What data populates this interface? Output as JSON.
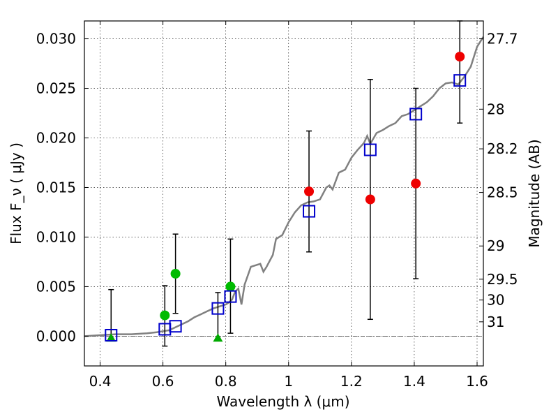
{
  "chart_data": {
    "type": "scatter",
    "xlabel": "Wavelength  λ (μm)",
    "ylabel": "Flux  F_ν  ( μJy )",
    "y2label": "Magnitude (AB)",
    "xlim": [
      0.35,
      1.62
    ],
    "ylim": [
      -0.003,
      0.0318
    ],
    "grid": true,
    "x_ticks": [
      0.4,
      0.6,
      0.8,
      1.0,
      1.2,
      1.4,
      1.6
    ],
    "x_tick_labels": [
      "0.4",
      "0.6",
      "0.8",
      "1",
      "1.2",
      "1.4",
      "1.6"
    ],
    "y_ticks": [
      0.0,
      0.005,
      0.01,
      0.015,
      0.02,
      0.025,
      0.03
    ],
    "y_tick_labels": [
      "0.000",
      "0.005",
      "0.010",
      "0.015",
      "0.020",
      "0.025",
      "0.030"
    ],
    "magnitude_ticks": [
      {
        "label": "27.7",
        "flux": 0.03
      },
      {
        "label": "28",
        "flux": 0.0229
      },
      {
        "label": "28.2",
        "flux": 0.0189
      },
      {
        "label": "28.5",
        "flux": 0.0145
      },
      {
        "label": "29",
        "flux": 0.0091
      },
      {
        "label": "29.5",
        "flux": 0.00575
      },
      {
        "label": "30",
        "flux": 0.00365
      },
      {
        "label": "31",
        "flux": 0.00145
      }
    ],
    "series": [
      {
        "style": "line",
        "color": "#808080",
        "points": [
          [
            0.35,
            0.0
          ],
          [
            0.4,
            0.0001
          ],
          [
            0.45,
            0.0002
          ],
          [
            0.5,
            0.0002
          ],
          [
            0.55,
            0.0003
          ],
          [
            0.58,
            0.0004
          ],
          [
            0.6,
            0.0005
          ],
          [
            0.62,
            0.0006
          ],
          [
            0.64,
            0.0009
          ],
          [
            0.66,
            0.0012
          ],
          [
            0.68,
            0.0015
          ],
          [
            0.7,
            0.0019
          ],
          [
            0.72,
            0.0022
          ],
          [
            0.74,
            0.0025
          ],
          [
            0.76,
            0.0028
          ],
          [
            0.78,
            0.003
          ],
          [
            0.8,
            0.0032
          ],
          [
            0.81,
            0.0034
          ],
          [
            0.82,
            0.0037
          ],
          [
            0.83,
            0.0045
          ],
          [
            0.84,
            0.0048
          ],
          [
            0.85,
            0.0032
          ],
          [
            0.86,
            0.0052
          ],
          [
            0.88,
            0.007
          ],
          [
            0.9,
            0.0072
          ],
          [
            0.91,
            0.0073
          ],
          [
            0.92,
            0.0065
          ],
          [
            0.93,
            0.007
          ],
          [
            0.95,
            0.0082
          ],
          [
            0.96,
            0.0098
          ],
          [
            0.98,
            0.0102
          ],
          [
            1.0,
            0.0115
          ],
          [
            1.02,
            0.0125
          ],
          [
            1.04,
            0.0132
          ],
          [
            1.06,
            0.0135
          ],
          [
            1.08,
            0.0136
          ],
          [
            1.1,
            0.0138
          ],
          [
            1.12,
            0.015
          ],
          [
            1.13,
            0.0152
          ],
          [
            1.14,
            0.0148
          ],
          [
            1.16,
            0.0165
          ],
          [
            1.18,
            0.0168
          ],
          [
            1.2,
            0.018
          ],
          [
            1.22,
            0.0188
          ],
          [
            1.24,
            0.0195
          ],
          [
            1.25,
            0.0202
          ],
          [
            1.26,
            0.0194
          ],
          [
            1.28,
            0.0205
          ],
          [
            1.3,
            0.0208
          ],
          [
            1.32,
            0.0212
          ],
          [
            1.34,
            0.0215
          ],
          [
            1.36,
            0.0222
          ],
          [
            1.38,
            0.0224
          ],
          [
            1.4,
            0.0228
          ],
          [
            1.42,
            0.0232
          ],
          [
            1.44,
            0.0236
          ],
          [
            1.46,
            0.0242
          ],
          [
            1.48,
            0.025
          ],
          [
            1.5,
            0.0255
          ],
          [
            1.52,
            0.0256
          ],
          [
            1.54,
            0.0254
          ],
          [
            1.56,
            0.0262
          ],
          [
            1.58,
            0.0272
          ],
          [
            1.6,
            0.0292
          ],
          [
            1.62,
            0.0302
          ]
        ]
      },
      {
        "style": "open-square",
        "color": "#0000cc",
        "points": [
          [
            0.435,
            0.0001
          ],
          [
            0.606,
            0.0007
          ],
          [
            0.64,
            0.001
          ],
          [
            0.775,
            0.0028
          ],
          [
            0.815,
            0.004
          ],
          [
            1.065,
            0.0126
          ],
          [
            1.26,
            0.0188
          ],
          [
            1.405,
            0.0224
          ],
          [
            1.545,
            0.0258
          ]
        ]
      },
      {
        "style": "filled-circle",
        "color": "#ee0000",
        "points": [
          [
            1.065,
            0.0146
          ],
          [
            1.26,
            0.0138
          ],
          [
            1.405,
            0.0154
          ],
          [
            1.545,
            0.0282
          ]
        ]
      },
      {
        "style": "filled-circle",
        "color": "#00bb00",
        "points": [
          [
            0.606,
            0.0021
          ],
          [
            0.64,
            0.0063
          ],
          [
            0.815,
            0.005
          ]
        ]
      },
      {
        "style": "triangle",
        "color": "#00aa00",
        "points": [
          [
            0.435,
            -0.0002
          ],
          [
            0.775,
            -0.0002
          ]
        ]
      }
    ],
    "error_bars": [
      {
        "x": 0.435,
        "low": -0.0002,
        "high": 0.0047
      },
      {
        "x": 0.606,
        "low": -0.001,
        "high": 0.0051
      },
      {
        "x": 0.64,
        "low": 0.0023,
        "high": 0.0103
      },
      {
        "x": 0.775,
        "low": -0.0002,
        "high": 0.0044
      },
      {
        "x": 0.815,
        "low": 0.0003,
        "high": 0.0098
      },
      {
        "x": 1.065,
        "low": 0.0085,
        "high": 0.0207
      },
      {
        "x": 1.26,
        "low": 0.0017,
        "high": 0.0259
      },
      {
        "x": 1.405,
        "low": 0.0058,
        "high": 0.025
      },
      {
        "x": 1.545,
        "low": 0.0215,
        "high": 0.0318
      }
    ],
    "zero_line": {
      "y": 0.0,
      "style": "dash-dot"
    }
  }
}
